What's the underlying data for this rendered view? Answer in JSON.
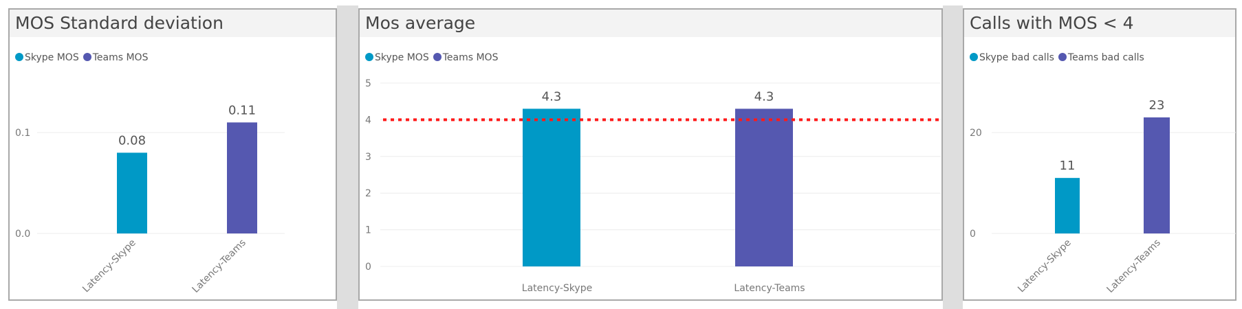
{
  "colors": {
    "skype": "#0099c6",
    "teams": "#5558b0",
    "threshold": "#ff1a1a",
    "grid": "#ececec",
    "text": "#666666"
  },
  "chart_data": [
    {
      "type": "bar",
      "title": "MOS Standard deviation",
      "legend": [
        "Skype MOS",
        "Teams MOS"
      ],
      "categories": [
        "Latency-Skype",
        "Latency-Teams"
      ],
      "values": [
        0.08,
        0.11
      ],
      "data_labels": [
        "0.08",
        "0.11"
      ],
      "yticks": [
        0,
        0.1
      ],
      "ytick_labels": [
        "0.0",
        "0.1"
      ],
      "ylim": [
        0,
        0.1
      ],
      "xlabel_rotation": "diagonal"
    },
    {
      "type": "bar",
      "title": "Mos average",
      "legend": [
        "Skype MOS",
        "Teams MOS"
      ],
      "categories": [
        "Latency-Skype",
        "Latency-Teams"
      ],
      "values": [
        4.3,
        4.3
      ],
      "data_labels": [
        "4.3",
        "4.3"
      ],
      "yticks": [
        0,
        1,
        2,
        3,
        4,
        5
      ],
      "ytick_labels": [
        "0",
        "1",
        "2",
        "3",
        "4",
        "5"
      ],
      "ylim": [
        0,
        5
      ],
      "reference_line": 4,
      "xlabel_rotation": "horizontal"
    },
    {
      "type": "bar",
      "title": "Calls with MOS < 4",
      "legend": [
        "Skype bad calls",
        "Teams bad calls"
      ],
      "categories": [
        "Latency-Skype",
        "Latency-Teams"
      ],
      "values": [
        11,
        23
      ],
      "data_labels": [
        "11",
        "23"
      ],
      "yticks": [
        0,
        20
      ],
      "ytick_labels": [
        "0",
        "20"
      ],
      "ylim": [
        0,
        20
      ],
      "xlabel_rotation": "diagonal"
    }
  ]
}
